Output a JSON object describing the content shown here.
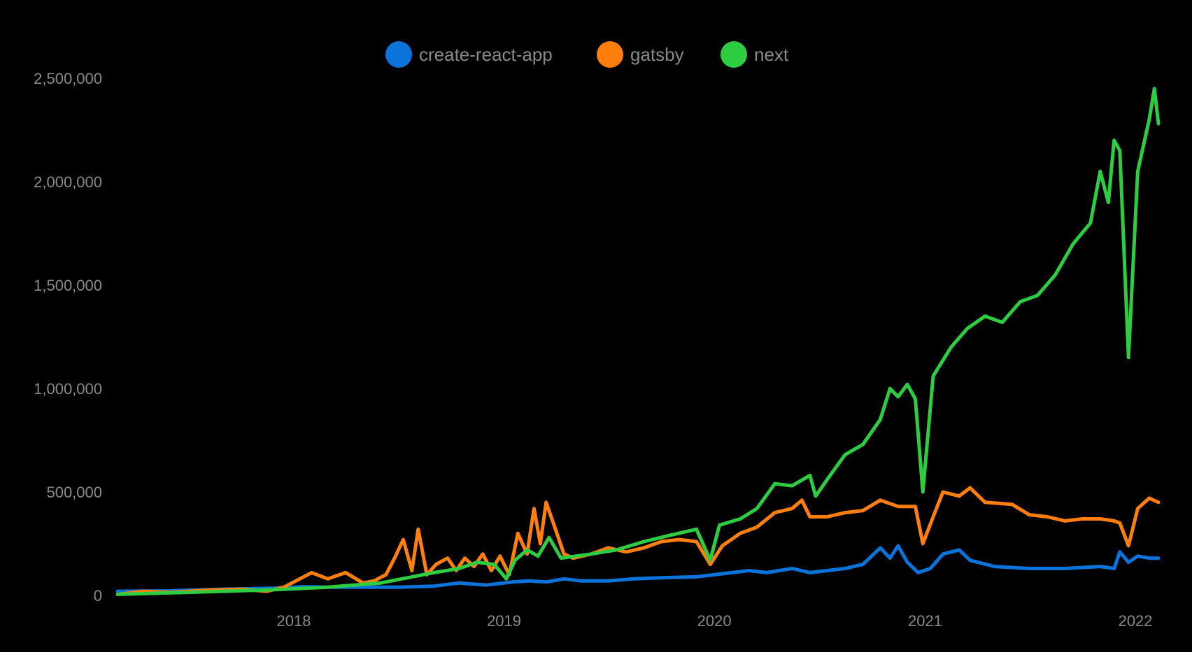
{
  "chart_data": {
    "type": "line",
    "title": "",
    "xlabel": "",
    "ylabel": "",
    "x_ticks": [
      "2018",
      "2019",
      "2020",
      "2021",
      "2022"
    ],
    "y_ticks": [
      "0",
      "500,000",
      "1,000,000",
      "1,500,000",
      "2,000,000",
      "2,500,000"
    ],
    "xlim": [
      "2017-03-01",
      "2022-02-10"
    ],
    "ylim": [
      0,
      2500000
    ],
    "grid": false,
    "legend_position": "top-center",
    "background": "#000000",
    "series": [
      {
        "name": "create-react-app",
        "color": "#0a74da",
        "points": [
          [
            "2017-03-01",
            20000
          ],
          [
            "2017-06-01",
            22000
          ],
          [
            "2017-09-01",
            30000
          ],
          [
            "2017-12-01",
            35000
          ],
          [
            "2018-01-15",
            42000
          ],
          [
            "2018-03-01",
            40000
          ],
          [
            "2018-05-15",
            40000
          ],
          [
            "2018-07-01",
            40000
          ],
          [
            "2018-09-01",
            45000
          ],
          [
            "2018-10-15",
            60000
          ],
          [
            "2018-12-01",
            50000
          ],
          [
            "2019-01-15",
            65000
          ],
          [
            "2019-02-15",
            70000
          ],
          [
            "2019-03-15",
            65000
          ],
          [
            "2019-04-15",
            80000
          ],
          [
            "2019-05-15",
            70000
          ],
          [
            "2019-07-01",
            70000
          ],
          [
            "2019-08-15",
            80000
          ],
          [
            "2019-10-01",
            85000
          ],
          [
            "2019-12-01",
            90000
          ],
          [
            "2020-01-01",
            100000
          ],
          [
            "2020-02-01",
            110000
          ],
          [
            "2020-03-01",
            120000
          ],
          [
            "2020-04-01",
            110000
          ],
          [
            "2020-05-15",
            130000
          ],
          [
            "2020-06-15",
            110000
          ],
          [
            "2020-07-15",
            120000
          ],
          [
            "2020-08-15",
            130000
          ],
          [
            "2020-09-15",
            150000
          ],
          [
            "2020-10-15",
            230000
          ],
          [
            "2020-11-01",
            180000
          ],
          [
            "2020-11-15",
            240000
          ],
          [
            "2020-12-01",
            160000
          ],
          [
            "2020-12-20",
            110000
          ],
          [
            "2021-01-10",
            130000
          ],
          [
            "2021-02-01",
            200000
          ],
          [
            "2021-03-01",
            220000
          ],
          [
            "2021-03-20",
            170000
          ],
          [
            "2021-05-01",
            140000
          ],
          [
            "2021-07-01",
            130000
          ],
          [
            "2021-09-01",
            130000
          ],
          [
            "2021-11-01",
            140000
          ],
          [
            "2021-11-25",
            130000
          ],
          [
            "2021-12-05",
            210000
          ],
          [
            "2021-12-20",
            160000
          ],
          [
            "2022-01-05",
            190000
          ],
          [
            "2022-01-25",
            180000
          ],
          [
            "2022-02-10",
            180000
          ]
        ]
      },
      {
        "name": "gatsby",
        "color": "#ff7f0e",
        "points": [
          [
            "2017-03-01",
            5000
          ],
          [
            "2017-04-15",
            20000
          ],
          [
            "2017-06-01",
            15000
          ],
          [
            "2017-08-01",
            25000
          ],
          [
            "2017-10-01",
            30000
          ],
          [
            "2017-11-15",
            20000
          ],
          [
            "2017-12-15",
            40000
          ],
          [
            "2018-02-01",
            110000
          ],
          [
            "2018-03-01",
            80000
          ],
          [
            "2018-04-01",
            110000
          ],
          [
            "2018-05-01",
            60000
          ],
          [
            "2018-05-20",
            70000
          ],
          [
            "2018-06-10",
            100000
          ],
          [
            "2018-06-25",
            180000
          ],
          [
            "2018-07-10",
            270000
          ],
          [
            "2018-07-25",
            120000
          ],
          [
            "2018-08-05",
            320000
          ],
          [
            "2018-08-20",
            100000
          ],
          [
            "2018-09-05",
            150000
          ],
          [
            "2018-09-25",
            180000
          ],
          [
            "2018-10-10",
            120000
          ],
          [
            "2018-10-25",
            180000
          ],
          [
            "2018-11-10",
            140000
          ],
          [
            "2018-11-25",
            200000
          ],
          [
            "2018-12-10",
            120000
          ],
          [
            "2018-12-25",
            190000
          ],
          [
            "2019-01-10",
            100000
          ],
          [
            "2019-01-25",
            300000
          ],
          [
            "2019-02-10",
            200000
          ],
          [
            "2019-02-22",
            420000
          ],
          [
            "2019-03-05",
            250000
          ],
          [
            "2019-03-15",
            450000
          ],
          [
            "2019-03-30",
            330000
          ],
          [
            "2019-04-15",
            200000
          ],
          [
            "2019-05-01",
            180000
          ],
          [
            "2019-06-01",
            200000
          ],
          [
            "2019-07-01",
            230000
          ],
          [
            "2019-08-01",
            210000
          ],
          [
            "2019-09-01",
            230000
          ],
          [
            "2019-10-01",
            260000
          ],
          [
            "2019-11-01",
            270000
          ],
          [
            "2019-12-01",
            260000
          ],
          [
            "2019-12-25",
            150000
          ],
          [
            "2020-01-15",
            240000
          ],
          [
            "2020-02-15",
            300000
          ],
          [
            "2020-03-15",
            330000
          ],
          [
            "2020-04-15",
            400000
          ],
          [
            "2020-05-15",
            420000
          ],
          [
            "2020-06-01",
            460000
          ],
          [
            "2020-06-15",
            380000
          ],
          [
            "2020-07-15",
            380000
          ],
          [
            "2020-08-15",
            400000
          ],
          [
            "2020-09-15",
            410000
          ],
          [
            "2020-10-15",
            460000
          ],
          [
            "2020-11-15",
            430000
          ],
          [
            "2020-12-15",
            430000
          ],
          [
            "2020-12-28",
            250000
          ],
          [
            "2021-01-15",
            380000
          ],
          [
            "2021-02-01",
            500000
          ],
          [
            "2021-03-01",
            480000
          ],
          [
            "2021-03-20",
            520000
          ],
          [
            "2021-04-15",
            450000
          ],
          [
            "2021-06-01",
            440000
          ],
          [
            "2021-07-01",
            390000
          ],
          [
            "2021-08-01",
            380000
          ],
          [
            "2021-09-01",
            360000
          ],
          [
            "2021-10-01",
            370000
          ],
          [
            "2021-11-01",
            370000
          ],
          [
            "2021-11-25",
            360000
          ],
          [
            "2021-12-05",
            350000
          ],
          [
            "2021-12-20",
            240000
          ],
          [
            "2022-01-05",
            420000
          ],
          [
            "2022-01-25",
            470000
          ],
          [
            "2022-02-10",
            450000
          ]
        ]
      },
      {
        "name": "next",
        "color": "#2ecc40",
        "points": [
          [
            "2017-03-01",
            5000
          ],
          [
            "2017-06-01",
            12000
          ],
          [
            "2017-09-01",
            20000
          ],
          [
            "2017-12-01",
            28000
          ],
          [
            "2018-03-01",
            40000
          ],
          [
            "2018-06-01",
            60000
          ],
          [
            "2018-09-01",
            110000
          ],
          [
            "2018-10-15",
            130000
          ],
          [
            "2018-11-15",
            160000
          ],
          [
            "2018-12-15",
            150000
          ],
          [
            "2019-01-05",
            80000
          ],
          [
            "2019-01-20",
            170000
          ],
          [
            "2019-02-10",
            220000
          ],
          [
            "2019-03-01",
            190000
          ],
          [
            "2019-03-20",
            280000
          ],
          [
            "2019-04-10",
            180000
          ],
          [
            "2019-06-01",
            200000
          ],
          [
            "2019-07-15",
            220000
          ],
          [
            "2019-09-01",
            260000
          ],
          [
            "2019-10-15",
            290000
          ],
          [
            "2019-12-01",
            320000
          ],
          [
            "2019-12-25",
            170000
          ],
          [
            "2020-01-10",
            340000
          ],
          [
            "2020-02-15",
            370000
          ],
          [
            "2020-03-15",
            420000
          ],
          [
            "2020-04-15",
            540000
          ],
          [
            "2020-05-15",
            530000
          ],
          [
            "2020-06-15",
            580000
          ],
          [
            "2020-06-25",
            480000
          ],
          [
            "2020-07-15",
            560000
          ],
          [
            "2020-08-15",
            680000
          ],
          [
            "2020-09-15",
            730000
          ],
          [
            "2020-10-15",
            850000
          ],
          [
            "2020-11-01",
            1000000
          ],
          [
            "2020-11-15",
            960000
          ],
          [
            "2020-12-01",
            1020000
          ],
          [
            "2020-12-15",
            950000
          ],
          [
            "2020-12-28",
            500000
          ],
          [
            "2021-01-15",
            1060000
          ],
          [
            "2021-02-15",
            1200000
          ],
          [
            "2021-03-15",
            1290000
          ],
          [
            "2021-04-15",
            1350000
          ],
          [
            "2021-05-15",
            1320000
          ],
          [
            "2021-06-15",
            1420000
          ],
          [
            "2021-07-15",
            1450000
          ],
          [
            "2021-08-15",
            1550000
          ],
          [
            "2021-09-15",
            1700000
          ],
          [
            "2021-10-15",
            1800000
          ],
          [
            "2021-11-01",
            2050000
          ],
          [
            "2021-11-15",
            1900000
          ],
          [
            "2021-11-25",
            2200000
          ],
          [
            "2021-12-05",
            2150000
          ],
          [
            "2021-12-20",
            1150000
          ],
          [
            "2022-01-05",
            2050000
          ],
          [
            "2022-01-25",
            2300000
          ],
          [
            "2022-02-03",
            2450000
          ],
          [
            "2022-02-10",
            2280000
          ]
        ]
      }
    ]
  }
}
